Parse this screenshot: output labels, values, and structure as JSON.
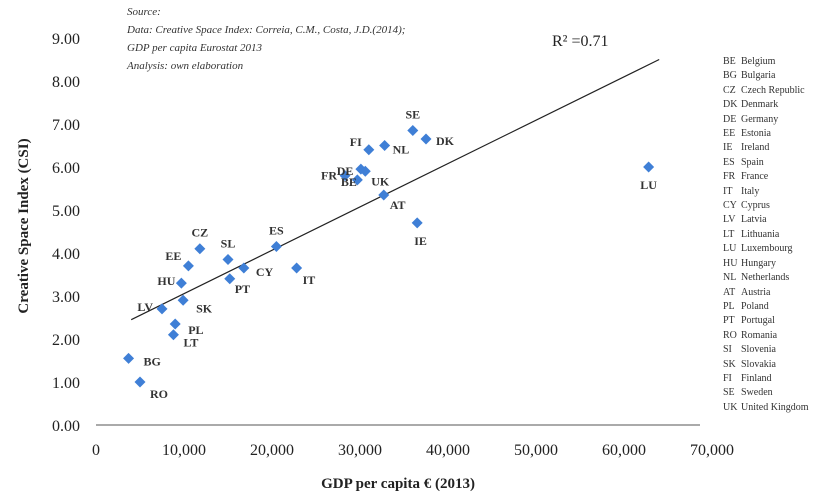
{
  "source_lines": [
    "Source:",
    "Data: Creative Space Index: Correia, C.M., Costa, J.D.(2014);",
    "GDP per capita Eurostat 2013",
    "Analysis: own elaboration"
  ],
  "legend": [
    {
      "code": "BE",
      "name": "Belgium"
    },
    {
      "code": "BG",
      "name": "Bulgaria"
    },
    {
      "code": "CZ",
      "name": "Czech Republic"
    },
    {
      "code": "DK",
      "name": "Denmark"
    },
    {
      "code": "DE",
      "name": "Germany"
    },
    {
      "code": "EE",
      "name": "Estonia"
    },
    {
      "code": "IE",
      "name": "Ireland"
    },
    {
      "code": "ES",
      "name": "Spain"
    },
    {
      "code": "FR",
      "name": "France"
    },
    {
      "code": "IT",
      "name": "Italy"
    },
    {
      "code": "CY",
      "name": "Cyprus"
    },
    {
      "code": "LV",
      "name": "Latvia"
    },
    {
      "code": "LT",
      "name": "Lithuania"
    },
    {
      "code": "LU",
      "name": "Luxembourg"
    },
    {
      "code": "HU",
      "name": "Hungary"
    },
    {
      "code": "NL",
      "name": "Netherlands"
    },
    {
      "code": "AT",
      "name": "Austria"
    },
    {
      "code": "PL",
      "name": "Poland"
    },
    {
      "code": "PT",
      "name": "Portugal"
    },
    {
      "code": "RO",
      "name": "Romania"
    },
    {
      "code": "SI",
      "name": "Slovenia"
    },
    {
      "code": "SK",
      "name": "Slovakia"
    },
    {
      "code": "FI",
      "name": "Finland"
    },
    {
      "code": "SE",
      "name": "Sweden"
    },
    {
      "code": "UK",
      "name": "United Kingdom"
    }
  ],
  "chart_data": {
    "type": "scatter",
    "xlabel": "GDP per capita € (2013)",
    "ylabel": "Creative Space Index (CSI)",
    "xlim": [
      0,
      70000
    ],
    "ylim": [
      0,
      9
    ],
    "xticks": [
      "0",
      "10,000",
      "20,000",
      "30,000",
      "40,000",
      "50,000",
      "60,000",
      "70,000"
    ],
    "yticks": [
      "0.00",
      "1.00",
      "2.00",
      "3.00",
      "4.00",
      "5.00",
      "6.00",
      "7.00",
      "8.00",
      "9.00"
    ],
    "r2_label": "R² =0.71",
    "marker_color": "#3f7fd6",
    "trendline": {
      "x": [
        4000,
        64000
      ],
      "y": [
        2.45,
        8.5
      ]
    },
    "points": [
      {
        "label": "BG",
        "x": 3700,
        "y": 1.55
      },
      {
        "label": "RO",
        "x": 5000,
        "y": 1.0
      },
      {
        "label": "LV",
        "x": 7500,
        "y": 2.7
      },
      {
        "label": "LT",
        "x": 8800,
        "y": 2.1
      },
      {
        "label": "PL",
        "x": 9000,
        "y": 2.35
      },
      {
        "label": "SK",
        "x": 9900,
        "y": 2.9
      },
      {
        "label": "HU",
        "x": 9700,
        "y": 3.3
      },
      {
        "label": "EE",
        "x": 10500,
        "y": 3.7
      },
      {
        "label": "CZ",
        "x": 11800,
        "y": 4.1
      },
      {
        "label": "SL",
        "x": 15000,
        "y": 3.85
      },
      {
        "label": "PT",
        "x": 15200,
        "y": 3.4
      },
      {
        "label": "CY",
        "x": 16800,
        "y": 3.65
      },
      {
        "label": "ES",
        "x": 20500,
        "y": 4.15
      },
      {
        "label": "IT",
        "x": 22800,
        "y": 3.65
      },
      {
        "label": "FR",
        "x": 28300,
        "y": 5.8
      },
      {
        "label": "DE",
        "x": 29700,
        "y": 5.7
      },
      {
        "label": "BE",
        "x": 30100,
        "y": 5.95
      },
      {
        "label": "UK",
        "x": 30600,
        "y": 5.9
      },
      {
        "label": "FI",
        "x": 31000,
        "y": 6.4
      },
      {
        "label": "AT",
        "x": 32700,
        "y": 5.35
      },
      {
        "label": "NL",
        "x": 32800,
        "y": 6.5
      },
      {
        "label": "IE",
        "x": 36500,
        "y": 4.7
      },
      {
        "label": "SE",
        "x": 36000,
        "y": 6.85
      },
      {
        "label": "DK",
        "x": 37500,
        "y": 6.65
      },
      {
        "label": "LU",
        "x": 62800,
        "y": 6.0
      }
    ]
  }
}
